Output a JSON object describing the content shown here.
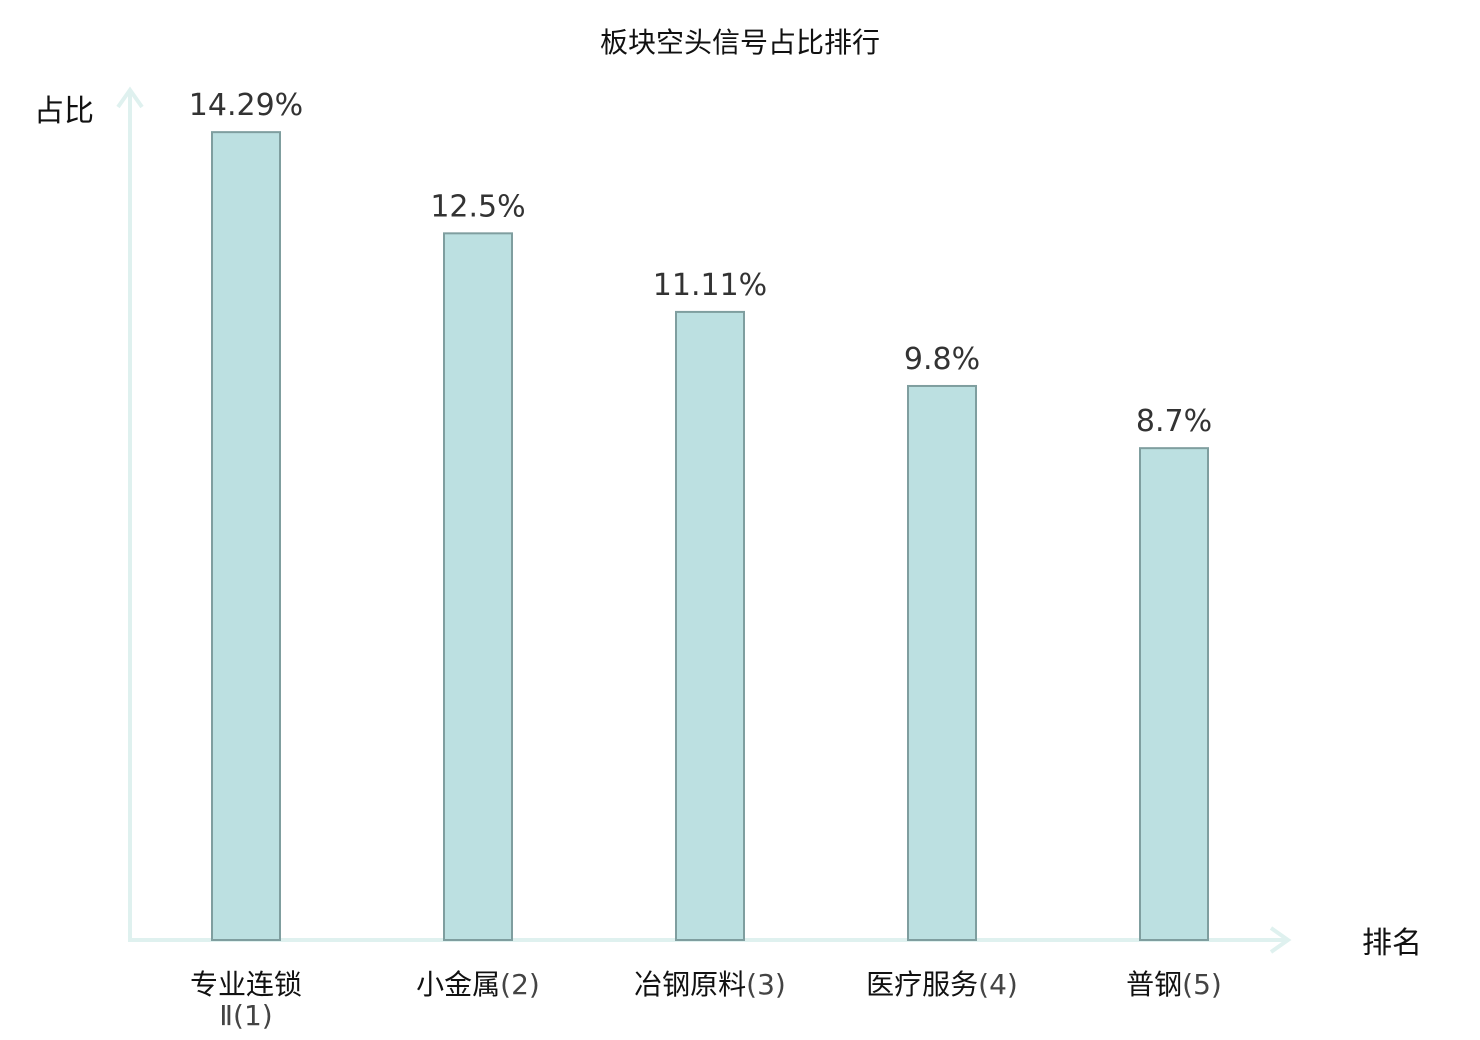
{
  "chart_data": {
    "type": "bar",
    "title": "板块空头信号占比排行",
    "xlabel": "排名",
    "ylabel": "占比",
    "ylim": [
      0,
      15.0
    ],
    "grid": false,
    "categories": [
      {
        "name": "专业连锁",
        "name2": "Ⅱ",
        "rank": "(1)",
        "highlight": false
      },
      {
        "name": "小金属",
        "name2": "",
        "rank": "(2)",
        "highlight": false
      },
      {
        "name": "冶钢原料",
        "name2": "",
        "rank": "(3)",
        "highlight": false
      },
      {
        "name": "医疗服务",
        "name2": "",
        "rank": "(4)",
        "highlight": true
      },
      {
        "name": "普钢",
        "name2": "",
        "rank": "(5)",
        "highlight": false
      }
    ],
    "values": [
      14.29,
      12.5,
      11.11,
      9.8,
      8.7
    ],
    "value_labels": [
      "14.29%",
      "12.5%",
      "11.11%",
      "9.8%",
      "8.7%"
    ]
  },
  "colors": {
    "bar_fill": "#bce0e1",
    "bar_stroke": "#7f9e9f",
    "axis": "#dff1ef",
    "highlight": "#e0201b",
    "text": "#111111"
  }
}
